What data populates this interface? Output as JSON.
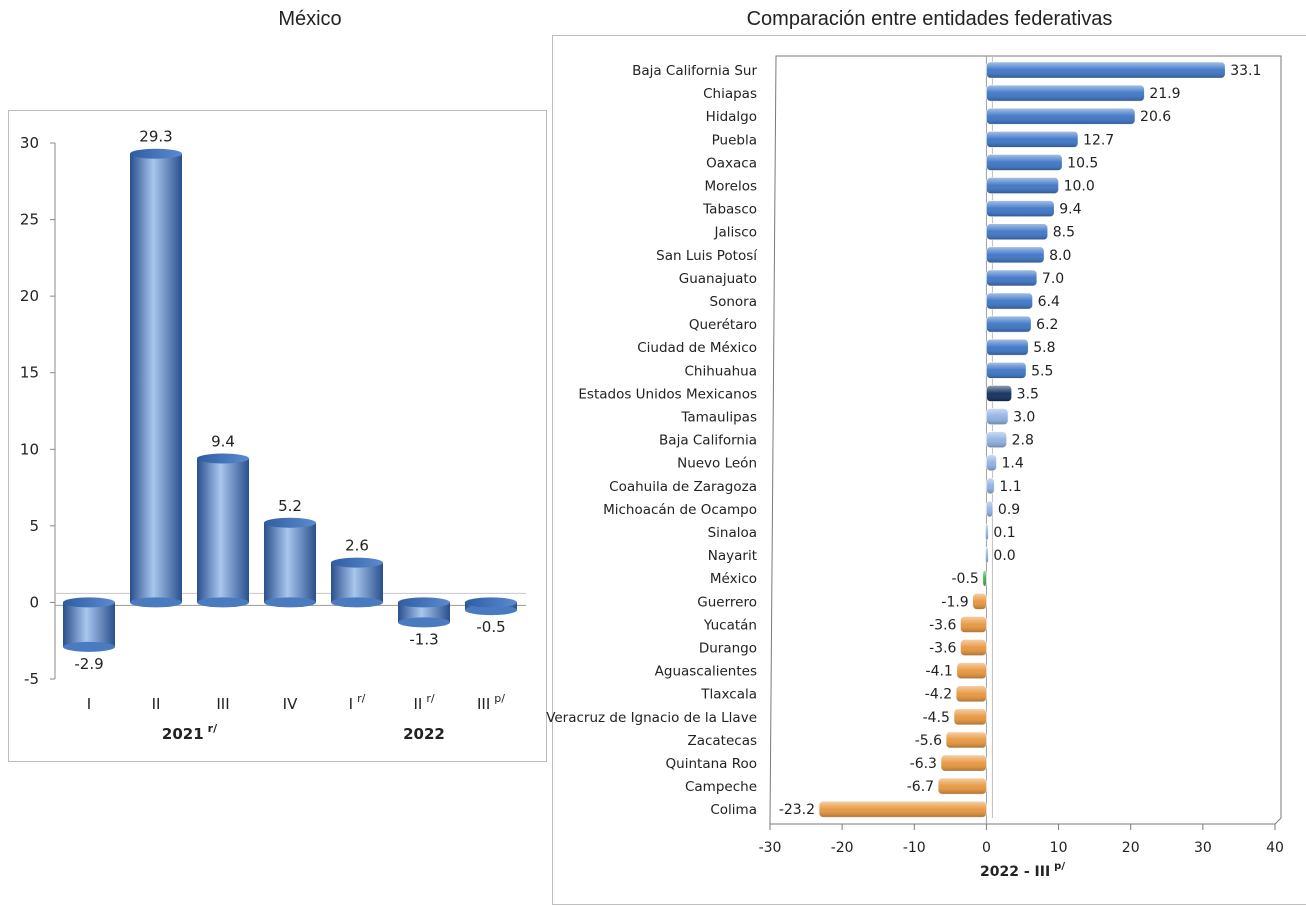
{
  "left_title": "México",
  "right_title": "Comparación entre entidades federativas",
  "chart_data": [
    {
      "type": "bar",
      "title": "México",
      "categories": [
        "I",
        "II",
        "III",
        "IV",
        "I",
        "II",
        "III"
      ],
      "category_superscripts": [
        "",
        "",
        "",
        "",
        "r/",
        "r/",
        "p/"
      ],
      "groups": [
        {
          "label": "2021",
          "superscript": "r/",
          "span": [
            0,
            3
          ]
        },
        {
          "label": "2022",
          "superscript": "",
          "span": [
            4,
            6
          ]
        }
      ],
      "values": [
        -2.9,
        29.3,
        9.4,
        5.2,
        2.6,
        -1.3,
        -0.5
      ],
      "data_labels": [
        "-2.9",
        "29.3",
        "9.4",
        "5.2",
        "2.6",
        "-1.3",
        "-0.5"
      ],
      "ylim": [
        -5,
        30
      ],
      "yticks": [
        -5,
        0,
        5,
        10,
        15,
        20,
        25,
        30
      ],
      "grid": false,
      "colors": {
        "bar": "#4a7ac0",
        "bar_light": "#a9c6ee",
        "bar_dark": "#2a4f8c"
      }
    },
    {
      "type": "bar",
      "orientation": "horizontal",
      "title": "Comparación entre entidades federativas",
      "xlabel": "2022 - III",
      "xlabel_superscript": "p/",
      "xlim": [
        -30,
        40
      ],
      "xticks": [
        -30,
        -20,
        -10,
        0,
        10,
        20,
        30,
        40
      ],
      "categories": [
        "Baja California Sur",
        "Chiapas",
        "Hidalgo",
        "Puebla",
        "Oaxaca",
        "Morelos",
        "Tabasco",
        "Jalisco",
        "San Luis Potosí",
        "Guanajuato",
        "Sonora",
        "Querétaro",
        "Ciudad de México",
        "Chihuahua",
        "Estados Unidos Mexicanos",
        "Tamaulipas",
        "Baja California",
        "Nuevo León",
        "Coahuila de Zaragoza",
        "Michoacán de Ocampo",
        "Sinaloa",
        "Nayarit",
        "México",
        "Guerrero",
        "Yucatán",
        "Durango",
        "Aguascalientes",
        "Tlaxcala",
        "Veracruz de Ignacio de la Llave",
        "Zacatecas",
        "Quintana Roo",
        "Campeche",
        "Colima"
      ],
      "values": [
        33.1,
        21.9,
        20.6,
        12.7,
        10.5,
        10.0,
        9.4,
        8.5,
        8.0,
        7.0,
        6.4,
        6.2,
        5.8,
        5.5,
        3.5,
        3.0,
        2.8,
        1.4,
        1.1,
        0.9,
        0.1,
        0.0,
        -0.5,
        -1.9,
        -3.6,
        -3.6,
        -4.1,
        -4.2,
        -4.5,
        -5.6,
        -6.3,
        -6.7,
        -23.2
      ],
      "data_labels": [
        "33.1",
        "21.9",
        "20.6",
        "12.7",
        "10.5",
        "10.0",
        "9.4",
        "8.5",
        "8.0",
        "7.0",
        "6.4",
        "6.2",
        "5.8",
        "5.5",
        "3.5",
        "3.0",
        "2.8",
        "1.4",
        "1.1",
        "0.9",
        "0.1",
        "0.0",
        "-0.5",
        "-1.9",
        "-3.6",
        "-3.6",
        "-4.1",
        "-4.2",
        "-4.5",
        "-5.6",
        "-6.3",
        "-6.7",
        "-23.2"
      ],
      "bar_colors": [
        "#3b74c6",
        "#3b74c6",
        "#3b74c6",
        "#3b74c6",
        "#3b74c6",
        "#3b74c6",
        "#3b74c6",
        "#3b74c6",
        "#3b74c6",
        "#3b74c6",
        "#3b74c6",
        "#3b74c6",
        "#3b74c6",
        "#3b74c6",
        "#0f2d5c",
        "#8fb1e3",
        "#8fb1e3",
        "#8fb1e3",
        "#8fb1e3",
        "#8fb1e3",
        "#8fb1e3",
        "#8fb1e3",
        "#3cb043",
        "#e8963c",
        "#e8963c",
        "#e8963c",
        "#e8963c",
        "#e8963c",
        "#e8963c",
        "#e8963c",
        "#e8963c",
        "#e8963c",
        "#e8963c"
      ],
      "grid": false
    }
  ]
}
